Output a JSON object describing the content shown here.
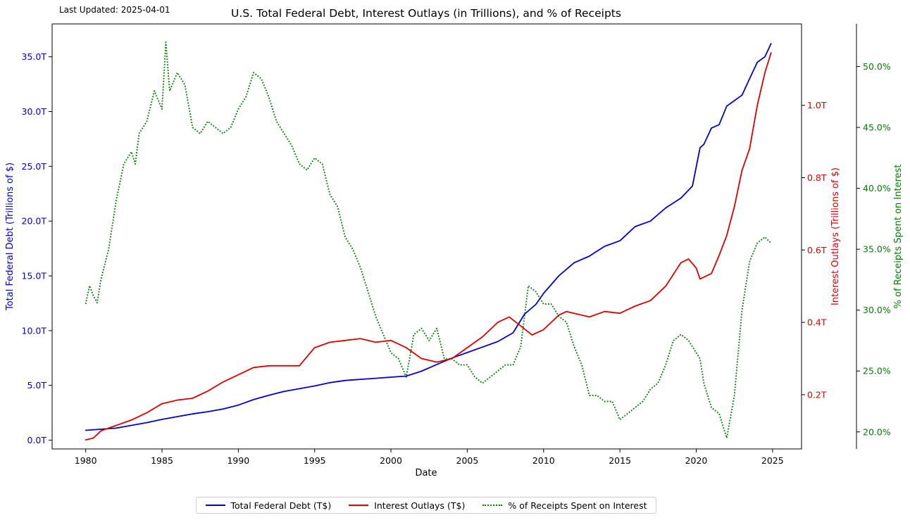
{
  "header": {
    "last_updated": "Last Updated: 2025-04-01",
    "title": "U.S. Total Federal Debt, Interest Outlays (in Trillions), and % of Receipts"
  },
  "legend": {
    "debt_label": "Total Federal Debt (T$)",
    "interest_label": "Interest Outlays (T$)",
    "pct_label": "% of Receipts Spent on Interest"
  },
  "chart_data": {
    "type": "line",
    "title": "U.S. Total Federal Debt, Interest Outlays (in Trillions), and % of Receipts",
    "xlabel": "Date",
    "x_range": [
      1977.8,
      2026.9
    ],
    "x_ticks": [
      1980,
      1985,
      1990,
      1995,
      2000,
      2005,
      2010,
      2015,
      2020,
      2025
    ],
    "grid": false,
    "legend_position": "bottom-center, below plot",
    "axes": {
      "left": {
        "label": "Total Federal Debt (Trillions of $)",
        "color": "#0000cc",
        "range": [
          -0.8,
          38.0
        ],
        "ticks": [
          0,
          5,
          10,
          15,
          20,
          25,
          30,
          35
        ],
        "tick_labels": [
          "0.0T",
          "5.0T",
          "10.0T",
          "15.0T",
          "20.0T",
          "25.0T",
          "30.0T",
          "35.0T"
        ]
      },
      "right": {
        "label": "Interest Outlays (Trillions of $)",
        "color": "#dd0000",
        "range": [
          0.05,
          1.225
        ],
        "ticks": [
          0.2,
          0.4,
          0.6,
          0.8,
          1.0
        ],
        "tick_labels": [
          "0.2T",
          "0.4T",
          "0.6T",
          "0.8T",
          "1.0T"
        ]
      },
      "right2": {
        "label": "% of Receipts Spent on Interest",
        "color": "#008000",
        "range": [
          18.6,
          53.5
        ],
        "ticks": [
          20,
          25,
          30,
          35,
          40,
          45,
          50
        ],
        "tick_labels": [
          "20.0%",
          "25.0%",
          "30.0%",
          "35.0%",
          "40.0%",
          "45.0%",
          "50.0%"
        ]
      }
    },
    "series": [
      {
        "name": "Total Federal Debt (T$)",
        "axis": "left",
        "color": "#0000cc",
        "style": "solid",
        "x": [
          1980.0,
          1981,
          1982,
          1983,
          1984,
          1985,
          1986,
          1987,
          1988,
          1989,
          1990,
          1991,
          1992,
          1993,
          1994,
          1995,
          1996,
          1997,
          1998,
          1999,
          2000,
          2001,
          2002,
          2003,
          2004,
          2005,
          2006,
          2007,
          2008,
          2008.75,
          2009.5,
          2010,
          2011,
          2012,
          2013,
          2014,
          2015,
          2016,
          2017,
          2018,
          2019,
          2019.75,
          2020.25,
          2020.5,
          2021,
          2021.5,
          2022,
          2022.5,
          2023,
          2023.5,
          2024,
          2024.5,
          2024.9
        ],
        "y": [
          0.9,
          1.0,
          1.1,
          1.35,
          1.6,
          1.9,
          2.15,
          2.4,
          2.6,
          2.85,
          3.2,
          3.7,
          4.1,
          4.45,
          4.7,
          4.95,
          5.25,
          5.45,
          5.55,
          5.65,
          5.75,
          5.85,
          6.3,
          6.9,
          7.5,
          8.0,
          8.5,
          9.0,
          9.8,
          11.5,
          12.4,
          13.4,
          15.0,
          16.2,
          16.8,
          17.7,
          18.2,
          19.5,
          20.0,
          21.2,
          22.1,
          23.2,
          26.7,
          27.0,
          28.5,
          28.8,
          30.5,
          31.0,
          31.5,
          33.0,
          34.5,
          35.0,
          36.2
        ]
      },
      {
        "name": "Interest Outlays (T$)",
        "axis": "right",
        "color": "#dd0000",
        "style": "solid",
        "x": [
          1980.0,
          1980.5,
          1981,
          1982,
          1983,
          1984,
          1985,
          1986,
          1987,
          1988,
          1989,
          1990,
          1991,
          1992,
          1993,
          1994,
          1995,
          1996,
          1997,
          1998,
          1999,
          2000,
          2001,
          2002,
          2003,
          2004,
          2005,
          2006,
          2007,
          2007.75,
          2008.5,
          2009.25,
          2010,
          2011,
          2011.5,
          2012,
          2013,
          2014,
          2015,
          2016,
          2017,
          2018,
          2019,
          2019.5,
          2020,
          2020.25,
          2021,
          2021.5,
          2022,
          2022.5,
          2023,
          2023.5,
          2024,
          2024.5,
          2024.9
        ],
        "y": [
          0.075,
          0.08,
          0.1,
          0.115,
          0.13,
          0.15,
          0.175,
          0.185,
          0.19,
          0.21,
          0.235,
          0.255,
          0.275,
          0.28,
          0.28,
          0.28,
          0.33,
          0.345,
          0.35,
          0.355,
          0.345,
          0.35,
          0.33,
          0.3,
          0.29,
          0.3,
          0.33,
          0.36,
          0.4,
          0.415,
          0.39,
          0.365,
          0.38,
          0.42,
          0.43,
          0.425,
          0.415,
          0.43,
          0.425,
          0.445,
          0.46,
          0.5,
          0.565,
          0.575,
          0.55,
          0.52,
          0.535,
          0.585,
          0.64,
          0.72,
          0.82,
          0.88,
          1.0,
          1.09,
          1.145
        ]
      },
      {
        "name": "% of Receipts Spent on Interest",
        "axis": "right2",
        "color": "#008000",
        "style": "dotted",
        "x": [
          1980.0,
          1980.25,
          1980.5,
          1980.75,
          1981,
          1981.5,
          1982,
          1982.5,
          1983,
          1983.25,
          1983.5,
          1984,
          1984.5,
          1985,
          1985.25,
          1985.5,
          1986,
          1986.5,
          1987,
          1987.5,
          1988,
          1988.5,
          1989,
          1989.5,
          1990,
          1990.5,
          1991,
          1991.5,
          1992,
          1992.5,
          1993,
          1993.5,
          1994,
          1994.5,
          1995,
          1995.5,
          1996,
          1996.5,
          1997,
          1997.5,
          1998,
          1998.5,
          1999,
          1999.5,
          2000,
          2000.5,
          2001,
          2001.5,
          2002,
          2002.5,
          2003,
          2003.5,
          2004,
          2004.5,
          2005,
          2005.5,
          2006,
          2006.5,
          2007,
          2007.5,
          2008,
          2008.5,
          2009,
          2009.5,
          2010,
          2010.5,
          2011,
          2011.5,
          2012,
          2012.5,
          2013,
          2013.5,
          2014,
          2014.5,
          2015,
          2015.5,
          2016,
          2016.5,
          2017,
          2017.5,
          2018,
          2018.5,
          2019,
          2019.5,
          2020,
          2020.25,
          2020.5,
          2021,
          2021.5,
          2022,
          2022.5,
          2023,
          2023.5,
          2024,
          2024.5,
          2024.9
        ],
        "y": [
          30.5,
          32.0,
          31.2,
          30.6,
          32.5,
          35.0,
          39.0,
          42.0,
          43.0,
          42.0,
          44.5,
          45.5,
          48.0,
          46.5,
          52.0,
          48.0,
          49.5,
          48.5,
          45.0,
          44.5,
          45.5,
          45.0,
          44.5,
          45.0,
          46.5,
          47.5,
          49.5,
          49.0,
          47.5,
          45.5,
          44.5,
          43.5,
          42.0,
          41.5,
          42.5,
          42.0,
          39.5,
          38.5,
          36.0,
          35.0,
          33.5,
          31.5,
          29.5,
          28.0,
          26.5,
          26.0,
          24.5,
          28.0,
          28.5,
          27.5,
          28.5,
          26.0,
          26.0,
          25.5,
          25.5,
          24.5,
          24.0,
          24.5,
          25.0,
          25.5,
          25.5,
          27.0,
          32.0,
          31.5,
          30.5,
          30.5,
          29.5,
          29.0,
          27.0,
          25.5,
          23.0,
          23.0,
          22.5,
          22.5,
          21.0,
          21.5,
          22.0,
          22.5,
          23.5,
          24.0,
          25.5,
          27.5,
          28.0,
          27.5,
          26.5,
          26.0,
          24.0,
          22.0,
          21.5,
          19.5,
          23.0,
          30.0,
          34.0,
          35.5,
          36.0,
          35.5
        ]
      }
    ]
  }
}
